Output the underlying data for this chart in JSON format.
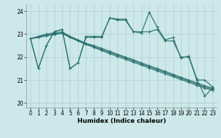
{
  "xlabel": "Humidex (Indice chaleur)",
  "background_color": "#cce8e8",
  "grid_color": "#aacccc",
  "line_color": "#2a6e6e",
  "xlim": [
    -0.5,
    23.5
  ],
  "ylim": [
    19.8,
    24.3
  ],
  "yticks": [
    20,
    21,
    22,
    23,
    24
  ],
  "xticks": [
    0,
    1,
    2,
    3,
    4,
    5,
    6,
    7,
    8,
    9,
    10,
    11,
    12,
    13,
    14,
    15,
    16,
    17,
    18,
    19,
    20,
    21,
    22,
    23
  ],
  "series": {
    "zigzag1": [
      22.8,
      21.5,
      22.5,
      23.1,
      23.2,
      21.5,
      21.75,
      22.85,
      22.85,
      22.85,
      23.7,
      23.65,
      23.65,
      23.1,
      23.05,
      23.95,
      23.3,
      22.75,
      22.85,
      21.95,
      22.05,
      21.05,
      20.3,
      20.65
    ],
    "zigzag2": [
      22.8,
      21.5,
      22.5,
      23.1,
      23.2,
      21.5,
      21.75,
      22.9,
      22.9,
      22.9,
      23.7,
      23.6,
      23.6,
      23.1,
      23.1,
      23.1,
      23.2,
      22.7,
      22.7,
      22.0,
      22.0,
      21.0,
      21.0,
      20.7
    ],
    "straight1": [
      22.8,
      22.9,
      23.0,
      23.05,
      23.1,
      22.9,
      22.75,
      22.6,
      22.5,
      22.38,
      22.25,
      22.12,
      22.0,
      21.88,
      21.75,
      21.62,
      21.5,
      21.38,
      21.25,
      21.12,
      21.0,
      20.88,
      20.75,
      20.65
    ],
    "straight2": [
      22.8,
      22.88,
      22.95,
      23.0,
      23.05,
      22.88,
      22.72,
      22.58,
      22.45,
      22.33,
      22.2,
      22.08,
      21.95,
      21.83,
      21.7,
      21.58,
      21.45,
      21.33,
      21.2,
      21.08,
      20.95,
      20.83,
      20.7,
      20.6
    ],
    "straight3": [
      22.8,
      22.85,
      22.92,
      22.98,
      23.03,
      22.85,
      22.7,
      22.55,
      22.42,
      22.28,
      22.15,
      22.02,
      21.9,
      21.77,
      21.65,
      21.52,
      21.4,
      21.27,
      21.15,
      21.02,
      20.9,
      20.77,
      20.65,
      20.55
    ]
  }
}
